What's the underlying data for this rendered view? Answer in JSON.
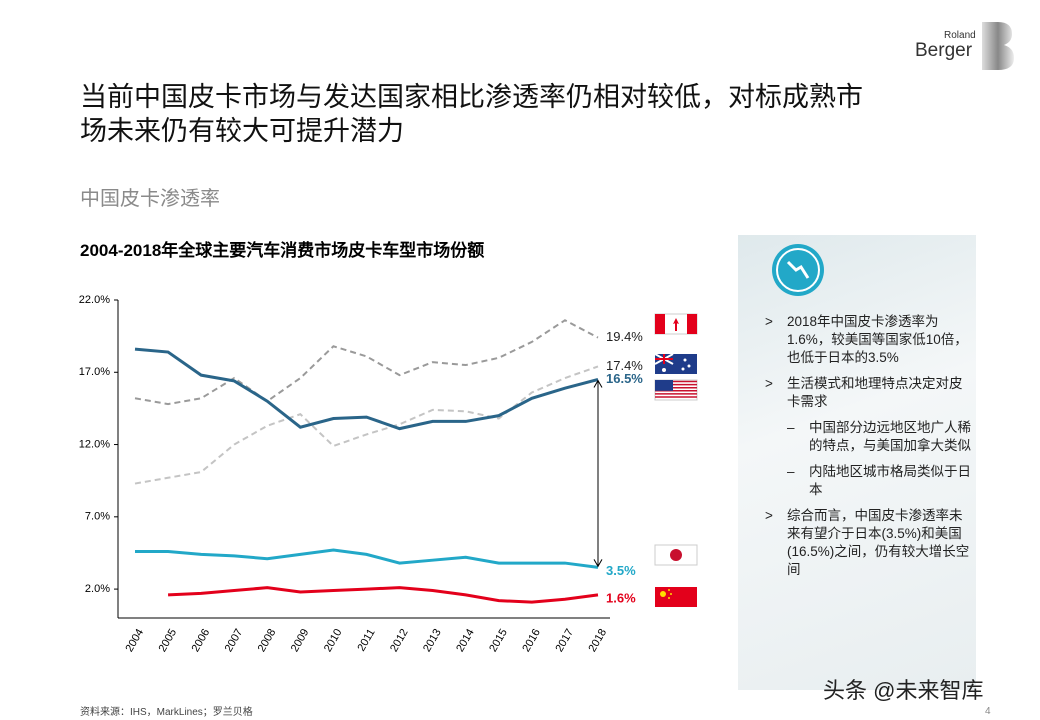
{
  "logo": [
    "Roland",
    "Berger"
  ],
  "header": {
    "title": [
      "当前中国皮卡市场与发达国家相比渗透率仍相对较低，对标成熟市",
      "场未来仍有较大可提升潜力"
    ],
    "subtitle": "中国皮卡渗透率"
  },
  "chart_data": {
    "type": "line",
    "title": "2004-2018年全球主要汽车消费市场皮卡车型市场份额",
    "categories": [
      "2004",
      "2005",
      "2006",
      "2007",
      "2008",
      "2009",
      "2010",
      "2011",
      "2012",
      "2013",
      "2014",
      "2015",
      "2016",
      "2017",
      "2018"
    ],
    "ylim": [
      0,
      22
    ],
    "yticks": [
      {
        "value": 2,
        "label": "2.0%"
      },
      {
        "value": 7,
        "label": "7.0%"
      },
      {
        "value": 12,
        "label": "12.0%"
      },
      {
        "value": 17,
        "label": "17.0%"
      },
      {
        "value": 22,
        "label": "22.0%"
      }
    ],
    "series": [
      {
        "color": "#9a9a9a",
        "dash": true,
        "values": [
          15.2,
          14.8,
          15.2,
          16.6,
          15.0,
          16.6,
          18.8,
          18.1,
          16.8,
          17.7,
          17.5,
          18.0,
          19.1,
          20.6,
          19.4
        ],
        "value_labels": [
          null,
          null,
          null,
          null,
          null,
          null,
          null,
          null,
          null,
          null,
          null,
          null,
          null,
          null,
          "19.4%"
        ]
      },
      {
        "color": "#c4c4c4",
        "dash": true,
        "values": [
          9.3,
          9.7,
          10.1,
          12.0,
          13.3,
          14.1,
          11.9,
          12.7,
          13.4,
          14.4,
          14.3,
          13.8,
          15.6,
          16.6,
          17.4
        ],
        "value_labels": [
          null,
          null,
          null,
          null,
          null,
          null,
          null,
          null,
          null,
          null,
          null,
          null,
          null,
          null,
          "17.4%"
        ]
      },
      {
        "color": "#2a6589",
        "dash": false,
        "values": [
          18.6,
          18.4,
          16.8,
          16.4,
          15.0,
          13.2,
          13.8,
          13.9,
          13.1,
          13.6,
          13.6,
          14.0,
          15.2,
          15.9,
          16.5
        ],
        "value_labels": [
          null,
          null,
          null,
          null,
          null,
          null,
          null,
          null,
          null,
          null,
          null,
          null,
          null,
          null,
          "16.5%"
        ]
      },
      {
        "color": "#22a8c8",
        "dash": false,
        "values": [
          4.6,
          4.6,
          4.4,
          4.3,
          4.1,
          4.4,
          4.7,
          4.4,
          3.8,
          4.0,
          4.2,
          3.8,
          3.8,
          3.8,
          3.5
        ],
        "value_labels": [
          null,
          null,
          null,
          null,
          null,
          null,
          null,
          null,
          null,
          null,
          null,
          null,
          null,
          null,
          "3.5%"
        ]
      },
      {
        "color": "#e3001b",
        "dash": false,
        "values": [
          null,
          1.6,
          1.7,
          1.9,
          2.1,
          1.8,
          1.9,
          2.0,
          2.1,
          1.9,
          1.6,
          1.2,
          1.1,
          1.3,
          1.6
        ],
        "value_labels": [
          null,
          null,
          null,
          null,
          null,
          null,
          null,
          null,
          null,
          null,
          null,
          null,
          null,
          null,
          "1.6%"
        ]
      }
    ]
  },
  "panel": [
    "2018年中国皮卡渗透率为1.6%，较美国等国家低10倍，也低于日本的3.5%",
    "生活模式和地理特点决定对皮卡需求",
    "中国部分边远地区地广人稀的特点，与美国加拿大类似",
    "内陆地区城市格局类似于日本",
    "综合而言，中国皮卡渗透率未来有望介于日本(3.5%)和美国 (16.5%)之间，仍有较大增长空间"
  ],
  "source": "资料来源：IHS，MarkLines；罗兰贝格",
  "page": "4",
  "watermark": "头条 @未来智库"
}
